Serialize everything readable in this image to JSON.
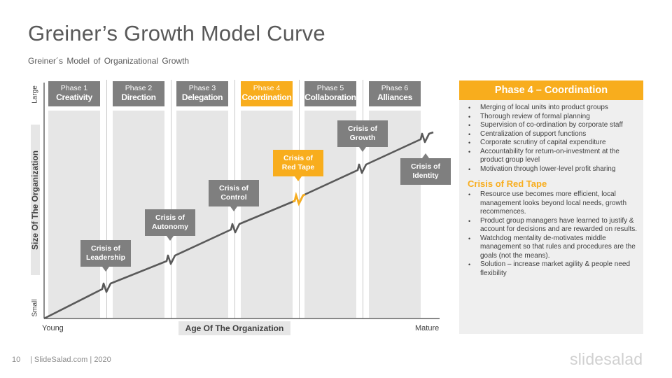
{
  "slide": {
    "title": "Greiner’s Growth Model Curve",
    "subtitle": "Greiner´s Model of Organizational Growth",
    "page_number": "10",
    "footer": "| SlideSalad.com | 2020",
    "brand": "slidesalad"
  },
  "colors": {
    "accent": "#f8ad1d",
    "gray_box": "#7f7f7f",
    "column_bg": "#e6e6e6",
    "panel_bg": "#efefef",
    "line": "#595959"
  },
  "axes": {
    "y_label": "Size Of The Organization",
    "y_top": "Large",
    "y_bottom": "Small",
    "x_label": "Age Of The Organization",
    "x_left": "Young",
    "x_right": "Mature"
  },
  "phases": [
    {
      "number": "Phase 1",
      "name": "Creativity",
      "active": false
    },
    {
      "number": "Phase 2",
      "name": "Direction",
      "active": false
    },
    {
      "number": "Phase 3",
      "name": "Delegation",
      "active": false
    },
    {
      "number": "Phase 4",
      "name": "Coordination",
      "active": true
    },
    {
      "number": "Phase 5",
      "name": "Collaboration",
      "active": false
    },
    {
      "number": "Phase 6",
      "name": "Alliances",
      "active": false
    }
  ],
  "crises": [
    {
      "line1": "Crisis of",
      "line2": "Leadership"
    },
    {
      "line1": "Crisis of",
      "line2": "Autonomy"
    },
    {
      "line1": "Crisis of",
      "line2": "Control"
    },
    {
      "line1": "Crisis of",
      "line2": "Red Tape",
      "active": true
    },
    {
      "line1": "Crisis of",
      "line2": "Growth"
    },
    {
      "line1": "Crisis of",
      "line2": "Identity"
    }
  ],
  "panel": {
    "heading": "Phase 4 – Coordination",
    "phase_points": [
      "Merging of local units into product groups",
      "Thorough review of formal planning",
      "Supervision of co-ordination by corporate staff",
      "Centralization of support functions",
      "Corporate scrutiny of capital expenditure",
      "Accountability for return-on-investment at the product group level",
      "Motivation through lower-level profit sharing"
    ],
    "crisis_heading": "Crisis of Red Tape",
    "crisis_points": [
      "Resource use becomes more efficient, local management looks beyond local needs, growth recommences.",
      "Product group managers have learned to justify & account for decisions and are rewarded on results.",
      "Watchdog mentality de-motivates middle management so that rules and procedures are the goals (not the means).",
      "Solution – increase market agility & people need flexibility"
    ]
  }
}
